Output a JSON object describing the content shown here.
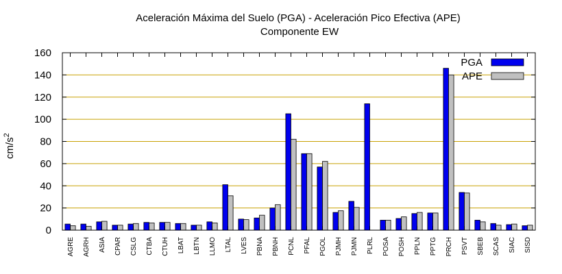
{
  "chart_data": {
    "type": "bar",
    "title": "Aceleración Máxima del Suelo (PGA) -  Aceleración Pico Efectiva (APE)",
    "subtitle": "Componente EW",
    "xlabel": "",
    "ylabel": "cm/s",
    "ylabel_superscript": "2",
    "ylim": [
      0,
      160
    ],
    "yticks": [
      0,
      20,
      40,
      60,
      80,
      100,
      120,
      140,
      160
    ],
    "grid": "horizontal",
    "legend_position": "top-right",
    "categories": [
      "AGRE",
      "AGRH",
      "ASIA",
      "CPAR",
      "CSLG",
      "CTBA",
      "CTUH",
      "LBAT",
      "LBTN",
      "LLMO",
      "LTAL",
      "LVES",
      "PBNA",
      "PBNH",
      "PCNL",
      "PFAL",
      "PGOL",
      "PJMH",
      "PJMN",
      "PLRL",
      "POSA",
      "POSH",
      "PPLN",
      "PPTG",
      "PRCH",
      "PSVT",
      "SBEB",
      "SCAS",
      "SIAC",
      "SISD"
    ],
    "series": [
      {
        "name": "PGA",
        "color": "#0000ee",
        "values": [
          5.5,
          5.5,
          7.5,
          4.5,
          5.5,
          7,
          7,
          6,
          4.5,
          7.5,
          41,
          10,
          11,
          20,
          105,
          69,
          57,
          16,
          26,
          114,
          9,
          10.5,
          15,
          15.5,
          146,
          34,
          9,
          6,
          5,
          4
        ]
      },
      {
        "name": "APE",
        "color": "#c0c0c0",
        "values": [
          4,
          3.5,
          8,
          4.5,
          6,
          6.5,
          7,
          6,
          4.5,
          6.5,
          31,
          9.5,
          13.5,
          23,
          82,
          69,
          62,
          17.5,
          20.5,
          0,
          9,
          12,
          16,
          15.5,
          140,
          33.5,
          7.5,
          4.5,
          5.5,
          4.5
        ]
      }
    ]
  }
}
